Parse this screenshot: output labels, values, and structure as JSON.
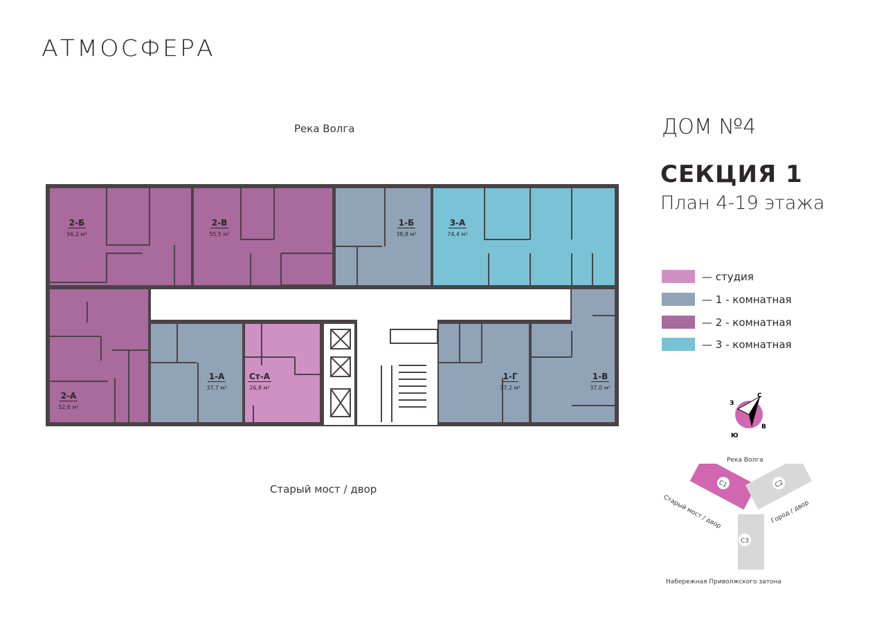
{
  "logo": "АТМОСФЕРА",
  "orientation": {
    "top": "Река Волга",
    "bottom": "Старый мост / двор"
  },
  "header": {
    "house": "ДОМ №4",
    "section": "СЕКЦИЯ 1",
    "floors": "План 4-19 этажа"
  },
  "colors": {
    "studio": "#cf90c4",
    "one_room": "#91a3b6",
    "two_room": "#a96a9d",
    "three_room": "#7ac3d6",
    "walls": "#4a4346"
  },
  "units": [
    {
      "id": "2-Б",
      "area": "56,2 м²",
      "type": "two_room"
    },
    {
      "id": "2-В",
      "area": "55,5 м²",
      "type": "two_room"
    },
    {
      "id": "1-Б",
      "area": "38,8 м²",
      "type": "one_room"
    },
    {
      "id": "3-А",
      "area": "74,4 м²",
      "type": "three_room"
    },
    {
      "id": "2-А",
      "area": "52,6 м²",
      "type": "two_room"
    },
    {
      "id": "1-А",
      "area": "37,7 м²",
      "type": "one_room"
    },
    {
      "id": "Ст-А",
      "area": "26,8 м²",
      "type": "studio"
    },
    {
      "id": "1-Г",
      "area": "37,2 м²",
      "type": "one_room"
    },
    {
      "id": "1-В",
      "area": "37,0 м²",
      "type": "one_room"
    }
  ],
  "legend": [
    {
      "label": "— студия",
      "color": "#cf90c4"
    },
    {
      "label": "— 1 - комнатная",
      "color": "#91a3b6"
    },
    {
      "label": "— 2 - комнатная",
      "color": "#a96a9d"
    },
    {
      "label": "— 3 - комнатная",
      "color": "#7ac3d6"
    }
  ],
  "compass": {
    "n": "С",
    "s": "Ю",
    "w": "З",
    "e": "В"
  },
  "site_plan": {
    "top": "Река Волга",
    "left": "Старый мост / двор",
    "right": "Город / двор",
    "bottom": "Набережная Приволжского затона",
    "sections": [
      "С1",
      "С2",
      "С3"
    ],
    "active": "С1"
  }
}
